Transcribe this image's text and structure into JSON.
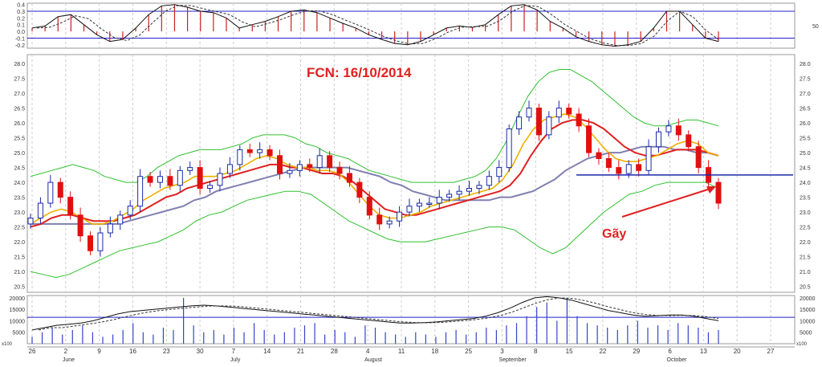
{
  "header": {
    "title": "FCN: 16/10/2014"
  },
  "annotations": {
    "break_label": "Gãy"
  },
  "colors": {
    "background": "#ffffff",
    "grid": "#cccccc",
    "reference_line": "#2222cc",
    "annotation_text": "#e02020",
    "candle_up": "#1a2aa8",
    "candle_down": "#e01010",
    "ma_short": "#f0b000",
    "ma_mid": "#e02020",
    "ma_long": "#8080b0",
    "bollinger": "#30c030",
    "volume_bars": "#3344cc",
    "macd_histogram": "#cc2020"
  },
  "chart_data": [
    {
      "type": "bar",
      "panel": "oscillator",
      "y_ticks": [
        "0.4",
        "0.3",
        "0.2",
        "0.1",
        "0.0",
        "-0.1",
        "-0.2"
      ],
      "right_ticks": [
        "50"
      ],
      "ylim": [
        -0.25,
        0.42
      ],
      "reference_levels": [
        0.3,
        -0.1
      ],
      "oscillator_values": [
        0.05,
        0.08,
        0.22,
        0.25,
        0.1,
        -0.05,
        -0.15,
        -0.12,
        0.05,
        0.25,
        0.38,
        0.4,
        0.36,
        0.3,
        0.28,
        0.2,
        0.05,
        0.1,
        0.15,
        0.22,
        0.3,
        0.32,
        0.28,
        0.2,
        0.12,
        0.05,
        -0.05,
        -0.12,
        -0.18,
        -0.2,
        -0.15,
        -0.05,
        0.05,
        0.08,
        0.06,
        0.1,
        0.25,
        0.38,
        0.4,
        0.32,
        0.15,
        0.05,
        -0.08,
        -0.15,
        -0.2,
        -0.22,
        -0.2,
        -0.15,
        0.05,
        0.3,
        0.3,
        0.1,
        -0.1,
        -0.15
      ]
    },
    {
      "type": "candlestick",
      "panel": "price",
      "title": "FCN: 16/10/2014",
      "y_ticks": [
        "28.0",
        "27.5",
        "27.0",
        "26.5",
        "26.0",
        "25.5",
        "25.0",
        "24.5",
        "24.0",
        "23.5",
        "23.0",
        "22.5",
        "22.0",
        "21.5",
        "21.0",
        "20.5"
      ],
      "ylim": [
        20.3,
        28.3
      ],
      "support_level": 24.25,
      "closes": [
        22.8,
        23.3,
        24.0,
        23.5,
        22.9,
        22.2,
        21.7,
        22.3,
        22.6,
        22.9,
        23.2,
        24.2,
        24.0,
        24.2,
        23.9,
        24.4,
        24.5,
        23.8,
        23.9,
        24.3,
        24.6,
        25.1,
        25.0,
        25.1,
        24.9,
        24.3,
        24.4,
        24.6,
        24.5,
        24.9,
        24.5,
        24.3,
        24.0,
        23.5,
        22.9,
        22.6,
        22.7,
        23.0,
        23.2,
        23.3,
        23.3,
        23.5,
        23.6,
        23.7,
        23.8,
        23.9,
        24.2,
        24.5,
        25.8,
        26.2,
        26.5,
        25.6,
        26.2,
        26.5,
        26.3,
        25.9,
        25.0,
        24.8,
        24.5,
        24.3,
        24.6,
        24.4,
        25.2,
        25.7,
        25.9,
        25.6,
        25.2,
        24.5,
        24.0,
        23.3
      ],
      "ma_short": [
        22.6,
        22.8,
        23.0,
        23.1,
        23.0,
        22.8,
        22.6,
        22.6,
        22.7,
        22.9,
        23.1,
        23.4,
        23.6,
        23.8,
        23.9,
        24.0,
        24.2,
        24.2,
        24.2,
        24.3,
        24.4,
        24.6,
        24.8,
        24.9,
        24.8,
        24.6,
        24.5,
        24.5,
        24.4,
        24.4,
        24.3,
        24.0,
        23.6,
        23.2,
        22.9,
        22.8,
        22.8,
        22.9,
        23.0,
        23.2,
        23.3,
        23.4,
        23.5,
        23.6,
        23.7,
        23.8,
        24.1,
        24.6,
        25.3,
        25.8,
        26.1,
        26.2,
        26.3,
        26.2,
        25.9,
        25.5,
        25.1,
        24.8,
        24.7,
        24.7,
        24.8,
        24.9,
        25.1,
        25.3,
        25.4,
        25.3,
        25.0,
        24.9
      ],
      "ma_mid": [
        22.5,
        22.6,
        22.8,
        22.9,
        22.9,
        22.8,
        22.7,
        22.7,
        22.7,
        22.8,
        22.9,
        23.1,
        23.3,
        23.5,
        23.6,
        23.8,
        23.9,
        24.0,
        24.1,
        24.2,
        24.3,
        24.4,
        24.5,
        24.6,
        24.6,
        24.5,
        24.5,
        24.4,
        24.3,
        24.3,
        24.2,
        24.0,
        23.7,
        23.4,
        23.1,
        23.0,
        22.9,
        22.9,
        23.0,
        23.1,
        23.2,
        23.3,
        23.4,
        23.5,
        23.6,
        23.7,
        23.9,
        24.3,
        24.9,
        25.4,
        25.8,
        26.0,
        26.1,
        26.1,
        26.0,
        25.8,
        25.5,
        25.2,
        25.0,
        24.9,
        24.9,
        25.0,
        25.1,
        25.1,
        25.1,
        25.0,
        24.9
      ],
      "ma_long": [
        22.6,
        22.6,
        22.6,
        22.6,
        22.6,
        22.6,
        22.6,
        22.6,
        22.6,
        22.7,
        22.8,
        22.9,
        23.0,
        23.1,
        23.2,
        23.4,
        23.5,
        23.7,
        23.8,
        23.9,
        24.0,
        24.1,
        24.2,
        24.3,
        24.4,
        24.5,
        24.5,
        24.5,
        24.5,
        24.5,
        24.4,
        24.3,
        24.2,
        24.0,
        23.9,
        23.7,
        23.6,
        23.5,
        23.4,
        23.4,
        23.4,
        23.4,
        23.4,
        23.5,
        23.5,
        23.6,
        23.7,
        23.9,
        24.1,
        24.4,
        24.6,
        24.8,
        24.9,
        25.0,
        25.0,
        25.1,
        25.2,
        25.2,
        25.2,
        25.1,
        25.1,
        25.0,
        25.0,
        24.9
      ],
      "bollinger_upper": [
        24.2,
        24.3,
        24.4,
        24.5,
        24.6,
        24.5,
        24.4,
        24.2,
        24.1,
        24.0,
        24.0,
        24.2,
        24.5,
        24.7,
        24.9,
        25.0,
        25.1,
        25.1,
        25.1,
        25.2,
        25.3,
        25.5,
        25.6,
        25.6,
        25.6,
        25.5,
        25.3,
        25.2,
        25.0,
        24.9,
        24.8,
        24.6,
        24.4,
        24.3,
        24.2,
        24.1,
        24.0,
        24.0,
        24.0,
        24.0,
        24.0,
        24.1,
        24.2,
        24.4,
        24.8,
        25.4,
        26.2,
        26.9,
        27.4,
        27.7,
        27.8,
        27.8,
        27.6,
        27.4,
        27.1,
        26.8,
        26.5,
        26.2,
        26.0,
        25.9,
        25.9,
        26.0,
        26.1,
        26.1,
        26.0,
        25.9
      ],
      "bollinger_lower": [
        21.0,
        20.9,
        20.8,
        20.9,
        21.1,
        21.3,
        21.5,
        21.7,
        21.8,
        21.9,
        22.0,
        22.2,
        22.4,
        22.7,
        22.9,
        23.0,
        23.2,
        23.4,
        23.5,
        23.6,
        23.7,
        23.7,
        23.6,
        23.3,
        23.0,
        22.7,
        22.5,
        22.3,
        22.1,
        22.0,
        22.0,
        22.0,
        22.1,
        22.2,
        22.3,
        22.4,
        22.5,
        22.5,
        22.4,
        22.1,
        21.8,
        21.6,
        21.8,
        22.2,
        22.6,
        23.0,
        23.3,
        23.6,
        23.7,
        23.9,
        24.0,
        24.0,
        24.0,
        24.0,
        23.8
      ]
    },
    {
      "type": "bar",
      "panel": "volume",
      "y_ticks": [
        "20000",
        "15000",
        "10000",
        "5000"
      ],
      "ylim": [
        0,
        21000
      ],
      "scale_label": "x100",
      "reference_level": 11500,
      "x_ticks": [
        "26",
        "2",
        "9",
        "16",
        "23",
        "30",
        "7",
        "14",
        "21",
        "28",
        "4",
        "11",
        "18",
        "25",
        "3",
        "8",
        "15",
        "22",
        "29",
        "6",
        "13",
        "20",
        "27"
      ],
      "month_labels": [
        "June",
        "July",
        "August",
        "September",
        "October"
      ],
      "values": [
        3000,
        5000,
        7000,
        4000,
        6000,
        8000,
        5000,
        3000,
        4000,
        6000,
        9000,
        5000,
        4000,
        7000,
        6000,
        20000,
        8000,
        5000,
        6000,
        4000,
        7000,
        5000,
        9000,
        6000,
        4000,
        5000,
        7000,
        8000,
        9000,
        4000,
        6000,
        5000,
        3000,
        8000,
        7000,
        5000,
        4000,
        3000,
        5000,
        4000,
        3000,
        5000,
        6000,
        4000,
        5000,
        7000,
        6000,
        8000,
        9000,
        12000,
        16000,
        18000,
        10000,
        20000,
        12000,
        9000,
        8000,
        7000,
        6000,
        8000,
        10000,
        7000,
        8000,
        6000,
        9000,
        8000,
        7000,
        5000,
        6000
      ],
      "volume_ma_short": [
        6000,
        7000,
        8000,
        8500,
        9000,
        10000,
        11500,
        13000,
        14000,
        14500,
        15000,
        15500,
        16000,
        16500,
        16800,
        16500,
        16000,
        15500,
        15000,
        14500,
        14000,
        13500,
        13000,
        12500,
        12000,
        11500,
        11000,
        10500,
        10000,
        9500,
        9000,
        9000,
        9200,
        9500,
        10000,
        10500,
        11000,
        12000,
        13500,
        15500,
        18000,
        20000,
        20500,
        20000,
        19000,
        17500,
        16000,
        14500,
        13500,
        12500,
        12000,
        12200,
        12500,
        12500,
        12000,
        11000,
        10000
      ]
    }
  ]
}
